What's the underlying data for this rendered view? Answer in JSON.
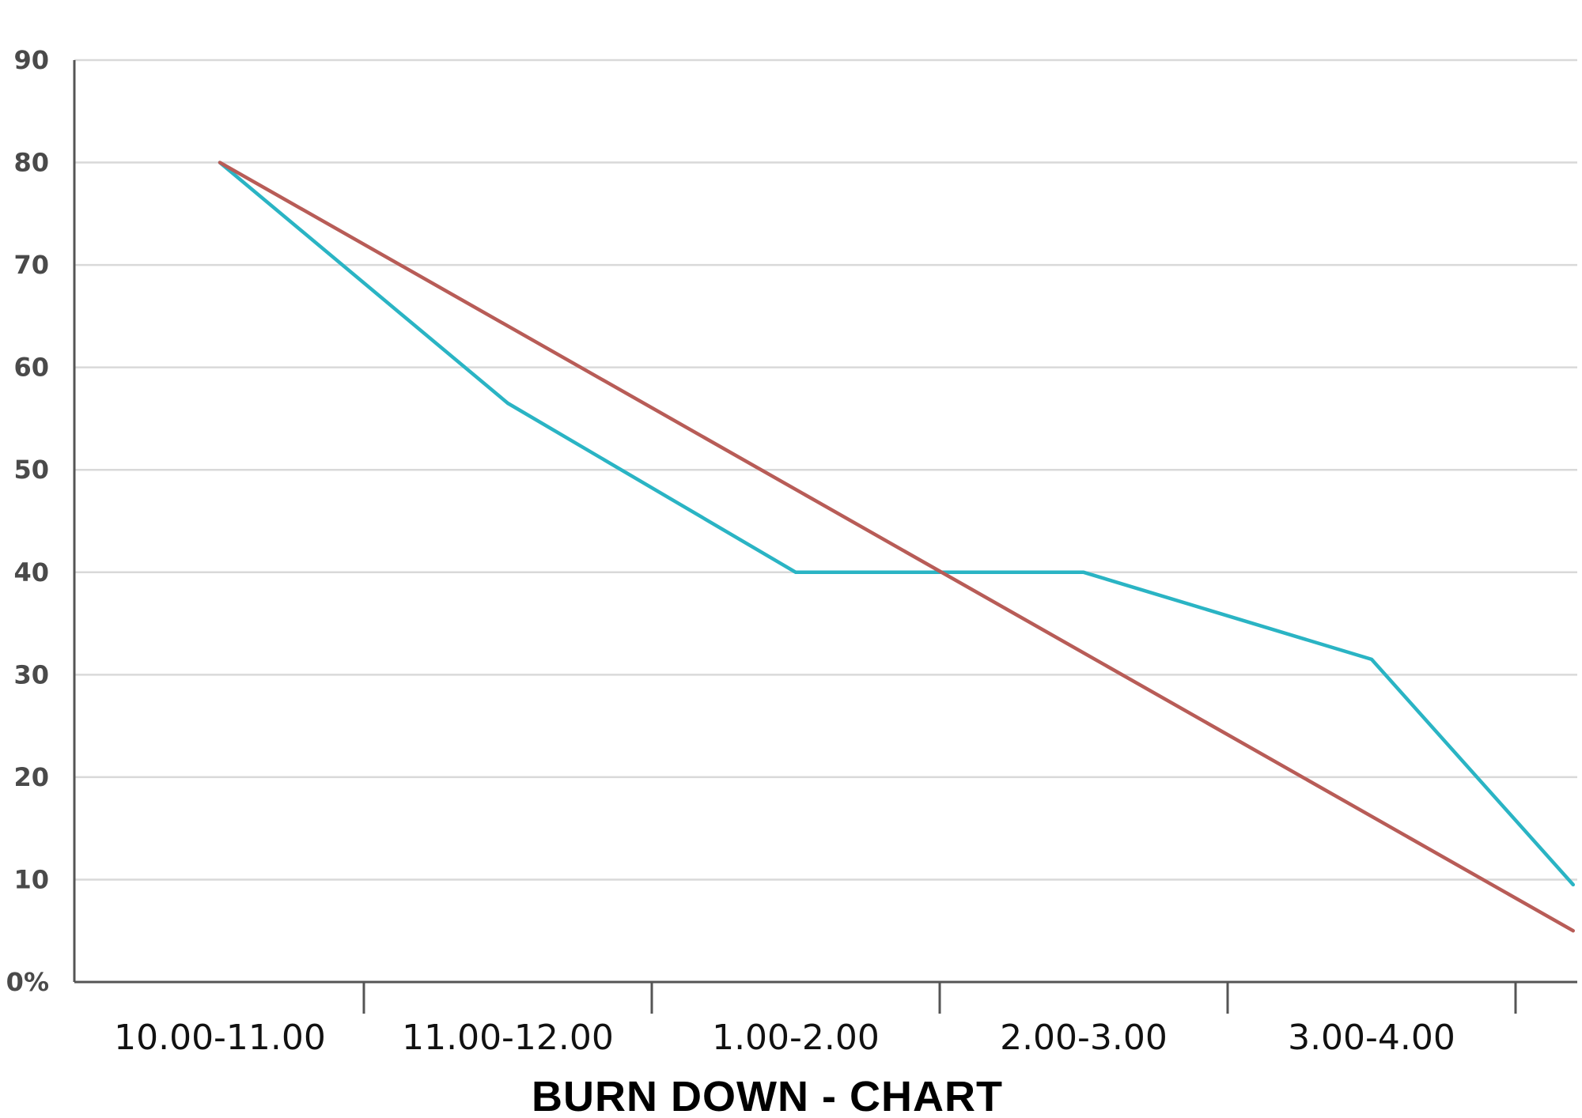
{
  "chart_data": {
    "type": "line",
    "title": "BURN DOWN - CHART",
    "xlabel": "",
    "ylabel": "",
    "categories": [
      "10.00-11.00",
      "11.00-12.00",
      "1.00-2.00",
      "2.00-3.00",
      "3.00-4.00"
    ],
    "y_tick_labels": [
      "0%",
      "10",
      "20",
      "30",
      "40",
      "50",
      "60",
      "70",
      "80",
      "90"
    ],
    "ylim": [
      0,
      90
    ],
    "grid": true,
    "legend": "none",
    "series": [
      {
        "color": "#2ab4c4",
        "points": [
          [
            0,
            80
          ],
          [
            1,
            56.5
          ],
          [
            2,
            40
          ],
          [
            3,
            40
          ],
          [
            4,
            31.5
          ],
          [
            4.7,
            9.5
          ]
        ]
      },
      {
        "color": "#b85c57",
        "points": [
          [
            0,
            80
          ],
          [
            4.7,
            5
          ]
        ]
      }
    ]
  }
}
